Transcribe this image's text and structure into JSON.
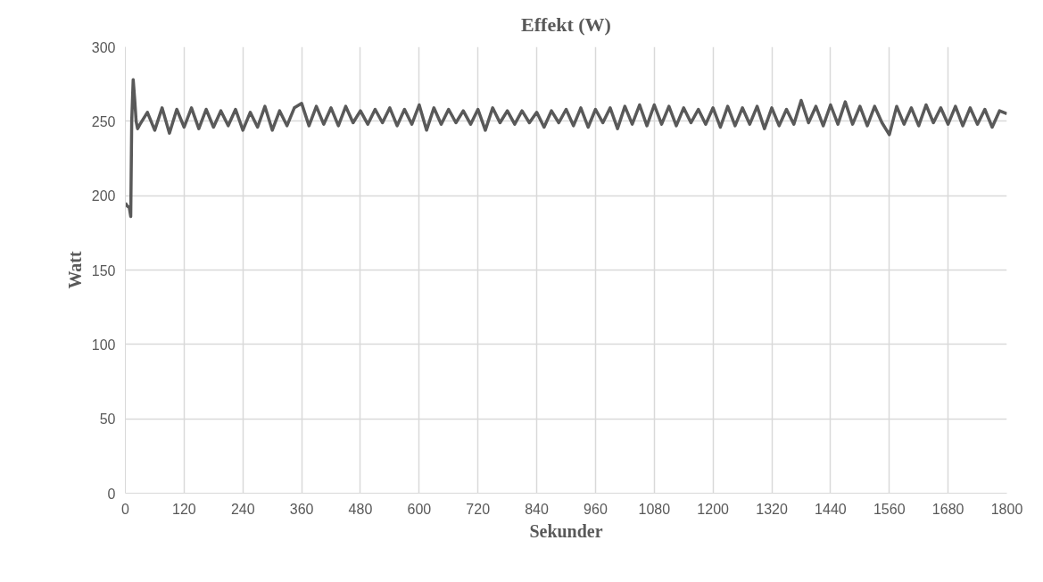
{
  "chart_data": {
    "type": "line",
    "title": "Effekt (W)",
    "xlabel": "Sekunder",
    "ylabel": "Watt",
    "x": [
      0,
      4,
      8,
      11,
      13,
      16,
      19,
      22,
      25,
      30,
      45,
      60,
      75,
      90,
      105,
      120,
      135,
      150,
      165,
      180,
      195,
      210,
      225,
      240,
      255,
      270,
      285,
      300,
      315,
      330,
      345,
      360,
      375,
      390,
      405,
      420,
      435,
      450,
      465,
      480,
      495,
      510,
      525,
      540,
      555,
      570,
      585,
      600,
      615,
      630,
      645,
      660,
      675,
      690,
      705,
      720,
      735,
      750,
      765,
      780,
      795,
      810,
      825,
      840,
      855,
      870,
      885,
      900,
      915,
      930,
      945,
      960,
      975,
      990,
      1005,
      1020,
      1035,
      1050,
      1065,
      1080,
      1095,
      1110,
      1125,
      1140,
      1155,
      1170,
      1185,
      1200,
      1215,
      1230,
      1245,
      1260,
      1275,
      1290,
      1305,
      1320,
      1335,
      1350,
      1365,
      1380,
      1395,
      1410,
      1425,
      1440,
      1455,
      1470,
      1485,
      1500,
      1515,
      1530,
      1545,
      1560,
      1575,
      1590,
      1605,
      1620,
      1635,
      1650,
      1665,
      1680,
      1695,
      1710,
      1725,
      1740,
      1755,
      1770,
      1785,
      1800
    ],
    "series": [
      {
        "color": "#595959",
        "values": [
          195,
          193,
          192,
          186,
          250,
          278,
          265,
          250,
          245,
          248,
          256,
          244,
          259,
          242,
          258,
          246,
          259,
          245,
          258,
          246,
          257,
          247,
          258,
          244,
          256,
          246,
          260,
          244,
          257,
          247,
          259,
          262,
          247,
          260,
          248,
          259,
          247,
          260,
          249,
          257,
          248,
          258,
          249,
          259,
          247,
          258,
          248,
          261,
          244,
          259,
          248,
          258,
          249,
          257,
          248,
          258,
          244,
          259,
          249,
          257,
          248,
          257,
          249,
          256,
          246,
          257,
          249,
          258,
          247,
          259,
          246,
          258,
          249,
          259,
          245,
          260,
          248,
          261,
          247,
          261,
          248,
          260,
          247,
          259,
          249,
          258,
          248,
          259,
          246,
          260,
          247,
          259,
          248,
          260,
          245,
          259,
          247,
          258,
          248,
          264,
          249,
          260,
          247,
          261,
          248,
          263,
          248,
          260,
          247,
          260,
          249,
          241,
          260,
          248,
          259,
          247,
          261,
          249,
          259,
          248,
          260,
          247,
          259,
          248,
          258,
          246,
          257,
          255
        ]
      }
    ],
    "xlim": [
      0,
      1800
    ],
    "xticks": [
      0,
      120,
      240,
      360,
      480,
      600,
      720,
      840,
      960,
      1080,
      1200,
      1320,
      1440,
      1560,
      1680,
      1800
    ],
    "ylim": [
      0,
      300
    ],
    "yticks": [
      0,
      50,
      100,
      150,
      200,
      250,
      300
    ],
    "grid": true,
    "line_style": "solid"
  }
}
